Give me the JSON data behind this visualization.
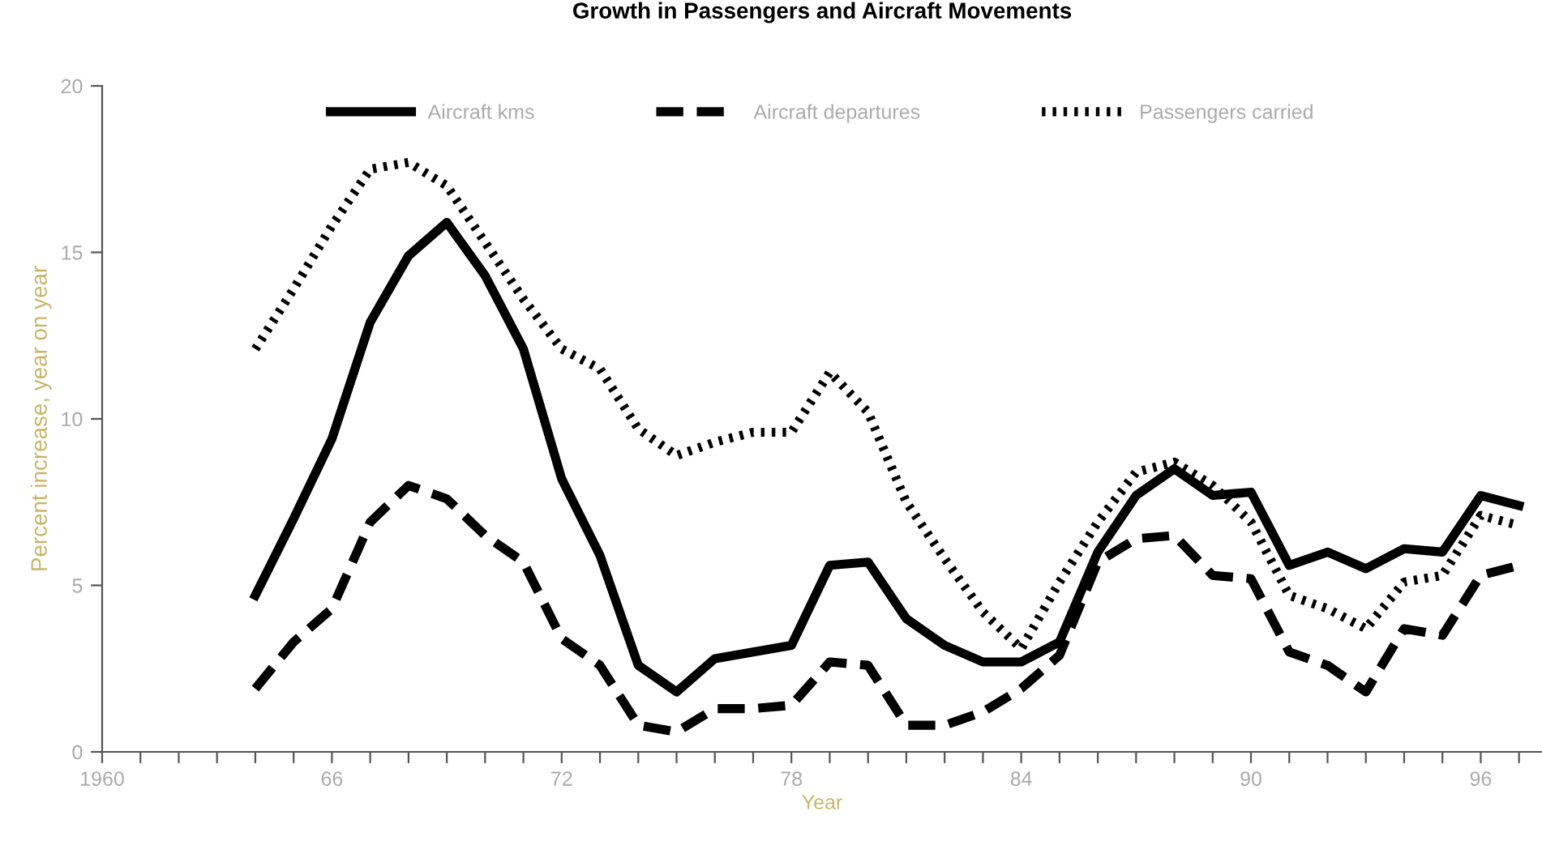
{
  "chart_data": {
    "type": "line",
    "title": "Growth in Passengers and Aircraft Movements",
    "xlabel": "Year",
    "ylabel": "Percent increase, year on year",
    "x": [
      1964,
      1965,
      1966,
      1967,
      1968,
      1969,
      1970,
      1971,
      1972,
      1973,
      1974,
      1975,
      1976,
      1977,
      1978,
      1979,
      1980,
      1981,
      1982,
      1983,
      1984,
      1985,
      1986,
      1987,
      1988,
      1989,
      1990,
      1991,
      1992,
      1993,
      1994,
      1995,
      1996,
      1997
    ],
    "series": [
      {
        "name": "Aircraft kms",
        "color": "#000000",
        "line_style": "solid",
        "values": [
          4.7,
          7.0,
          9.4,
          12.9,
          14.9,
          15.9,
          14.3,
          12.1,
          8.2,
          5.9,
          2.6,
          1.8,
          2.8,
          3.0,
          3.2,
          5.6,
          5.7,
          4.0,
          3.2,
          2.7,
          2.7,
          3.3,
          6.0,
          7.7,
          8.5,
          7.7,
          7.8,
          5.6,
          6.0,
          5.5,
          6.1,
          6.0,
          7.7,
          7.4
        ]
      },
      {
        "name": "Aircraft departures",
        "color": "#000000",
        "line_style": "dashed",
        "values": [
          1.9,
          3.3,
          4.3,
          6.9,
          8.0,
          7.6,
          6.5,
          5.7,
          3.4,
          2.6,
          0.8,
          0.6,
          1.3,
          1.3,
          1.4,
          2.7,
          2.6,
          0.8,
          0.8,
          1.2,
          1.9,
          2.9,
          5.7,
          6.4,
          6.5,
          5.3,
          5.2,
          3.0,
          2.6,
          1.8,
          3.7,
          3.5,
          5.3,
          5.6
        ]
      },
      {
        "name": "Passengers carried",
        "color": "#000000",
        "line_style": "dotted",
        "values": [
          12.1,
          13.9,
          15.8,
          17.5,
          17.7,
          17.0,
          15.3,
          13.6,
          12.1,
          11.5,
          9.7,
          8.9,
          9.3,
          9.6,
          9.6,
          11.4,
          10.2,
          7.5,
          5.8,
          4.2,
          3.1,
          5.1,
          6.9,
          8.4,
          8.7,
          8.0,
          6.9,
          4.7,
          4.3,
          3.7,
          5.1,
          5.3,
          7.1,
          6.8
        ]
      }
    ],
    "xlim": [
      1960,
      1997.6
    ],
    "ylim": [
      0,
      20
    ],
    "yticks": [
      0,
      5,
      10,
      15,
      20
    ],
    "xticks": [
      {
        "value": 1960,
        "label": "1960"
      },
      {
        "value": 1961,
        "label": null
      },
      {
        "value": 1962,
        "label": null
      },
      {
        "value": 1963,
        "label": null
      },
      {
        "value": 1964,
        "label": null
      },
      {
        "value": 1965,
        "label": null
      },
      {
        "value": 1966,
        "label": "66"
      },
      {
        "value": 1967,
        "label": null
      },
      {
        "value": 1968,
        "label": null
      },
      {
        "value": 1969,
        "label": null
      },
      {
        "value": 1970,
        "label": null
      },
      {
        "value": 1971,
        "label": null
      },
      {
        "value": 1972,
        "label": "72"
      },
      {
        "value": 1973,
        "label": null
      },
      {
        "value": 1974,
        "label": null
      },
      {
        "value": 1975,
        "label": null
      },
      {
        "value": 1976,
        "label": null
      },
      {
        "value": 1977,
        "label": null
      },
      {
        "value": 1978,
        "label": "78"
      },
      {
        "value": 1979,
        "label": null
      },
      {
        "value": 1980,
        "label": null
      },
      {
        "value": 1981,
        "label": null
      },
      {
        "value": 1982,
        "label": null
      },
      {
        "value": 1983,
        "label": null
      },
      {
        "value": 1984,
        "label": "84"
      },
      {
        "value": 1985,
        "label": null
      },
      {
        "value": 1986,
        "label": null
      },
      {
        "value": 1987,
        "label": null
      },
      {
        "value": 1988,
        "label": null
      },
      {
        "value": 1989,
        "label": null
      },
      {
        "value": 1990,
        "label": "90"
      },
      {
        "value": 1991,
        "label": null
      },
      {
        "value": 1992,
        "label": null
      },
      {
        "value": 1993,
        "label": null
      },
      {
        "value": 1994,
        "label": null
      },
      {
        "value": 1995,
        "label": null
      },
      {
        "value": 1996,
        "label": "96"
      },
      {
        "value": 1997,
        "label": null
      }
    ],
    "grid": false,
    "legend": "top",
    "marker": "none"
  }
}
